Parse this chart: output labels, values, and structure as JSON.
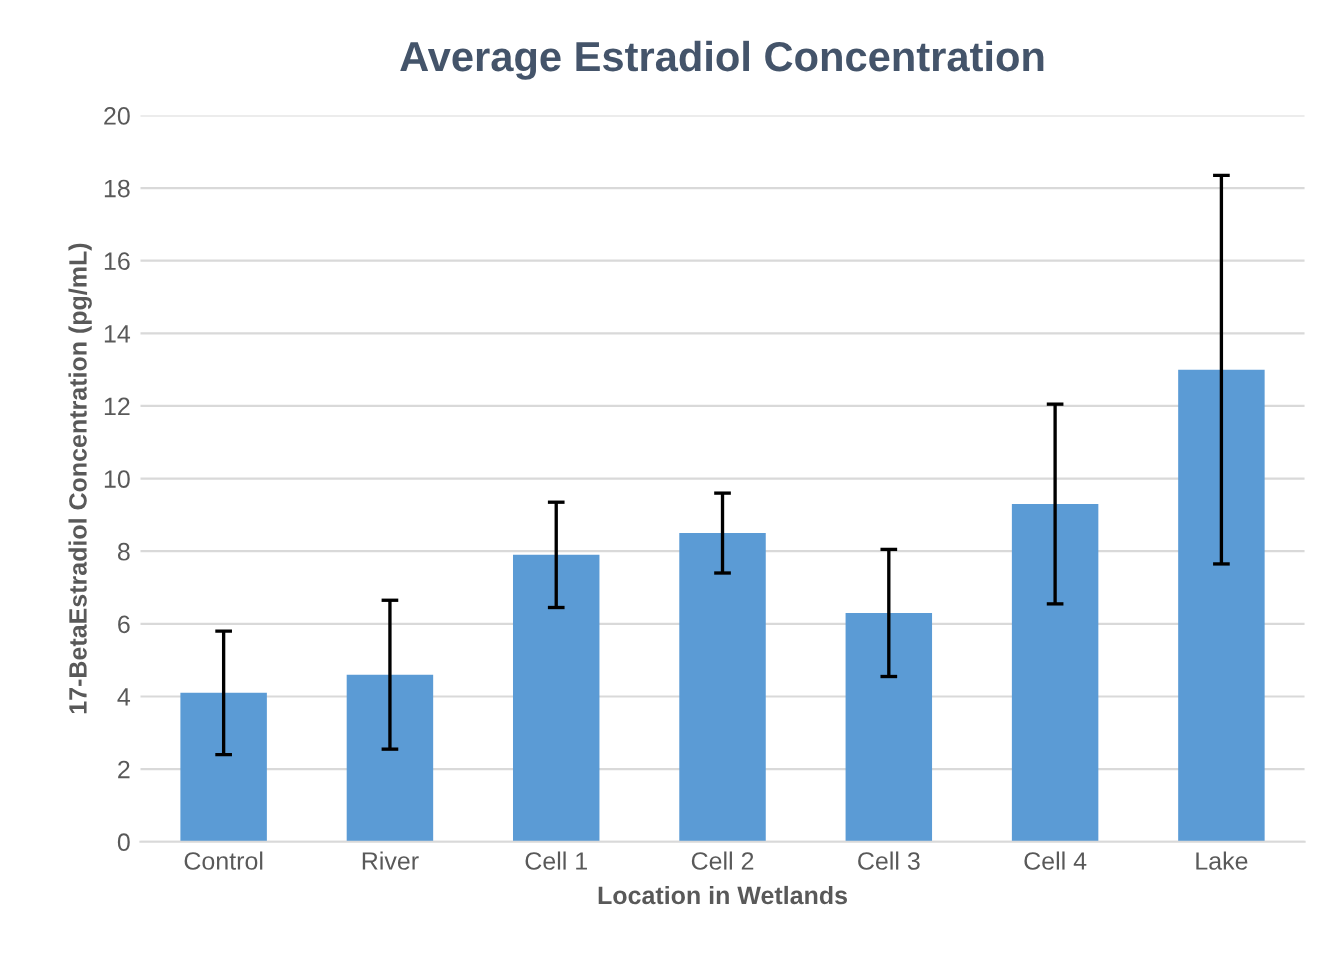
{
  "chart_data": {
    "type": "bar",
    "title": "Average Estradiol Concentration",
    "xlabel": "Location in Wetlands",
    "ylabel": "17-BetaEstradiol Concentration (pg/mL)",
    "categories": [
      "Control",
      "River",
      "Cell 1",
      "Cell 2",
      "Cell 3",
      "Cell 4",
      "Lake"
    ],
    "values": [
      4.1,
      4.6,
      7.9,
      8.5,
      6.3,
      9.3,
      13.0
    ],
    "errors": [
      1.7,
      2.05,
      1.45,
      1.1,
      1.75,
      2.75,
      5.35
    ],
    "color": "#5b9bd5",
    "ylim": [
      0,
      20
    ],
    "yticks": [
      0,
      2,
      4,
      6,
      8,
      10,
      12,
      14,
      16,
      18,
      20
    ],
    "grid": "y",
    "legend": false
  }
}
